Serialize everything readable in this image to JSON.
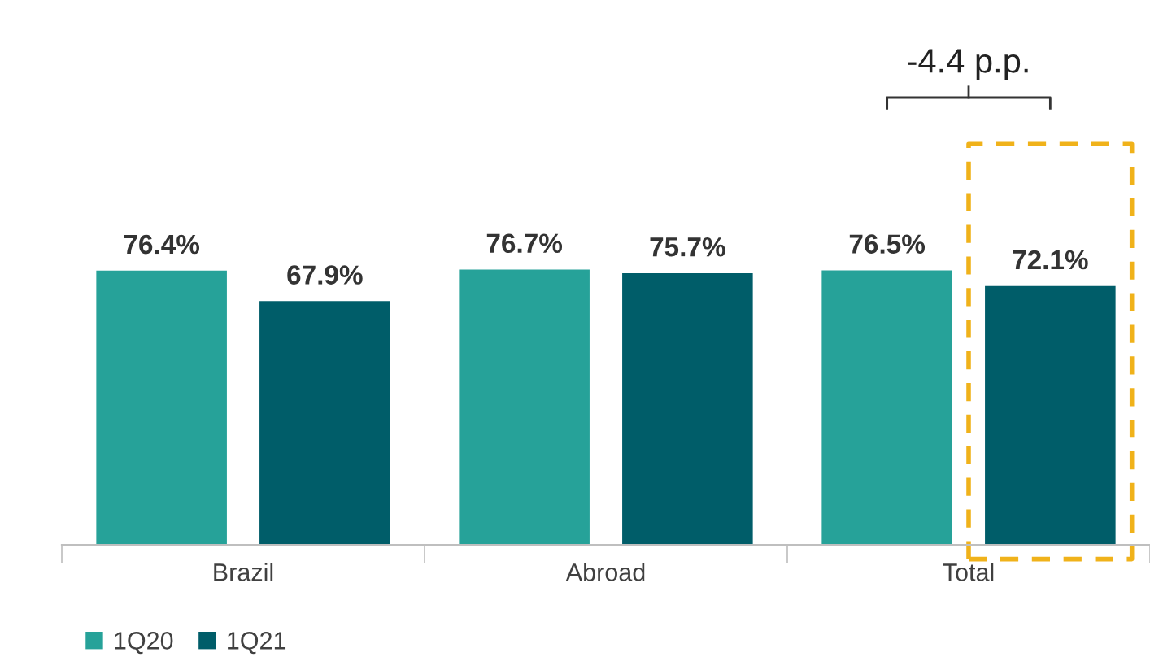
{
  "chart_data": {
    "type": "bar",
    "categories": [
      "Brazil",
      "Abroad",
      "Total"
    ],
    "series": [
      {
        "name": "1Q20",
        "color": "#26a299",
        "values": [
          76.4,
          76.7,
          76.5
        ],
        "value_labels": [
          "76.4%",
          "76.7%",
          "76.5%"
        ]
      },
      {
        "name": "1Q21",
        "color": "#005d69",
        "values": [
          67.9,
          75.7,
          72.1
        ],
        "value_labels": [
          "67.9%",
          "75.7%",
          "72.1%"
        ]
      }
    ],
    "annotations": [
      "-4.4 p.p."
    ],
    "grid": false,
    "legend": "bottom left"
  }
}
